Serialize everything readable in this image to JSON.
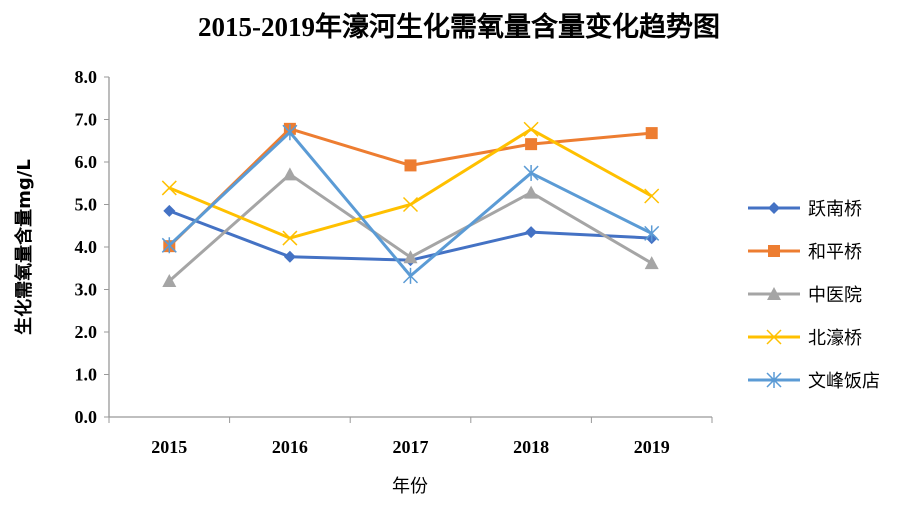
{
  "chart_data": {
    "type": "line",
    "title": "2015-2019年濠河生化需氧量含量变化趋势图",
    "xlabel": "年份",
    "ylabel": "生化需氧量含量mg/L",
    "categories": [
      "2015",
      "2016",
      "2017",
      "2018",
      "2019"
    ],
    "ylim": [
      0,
      8
    ],
    "yticks": [
      "0.0",
      "1.0",
      "2.0",
      "3.0",
      "4.0",
      "5.0",
      "6.0",
      "7.0",
      "8.0"
    ],
    "legend_position": "right",
    "grid": false,
    "series": [
      {
        "name": "跃南桥",
        "color": "#4472C4",
        "marker": "diamond",
        "values": [
          4.85,
          3.77,
          3.69,
          4.35,
          4.21
        ]
      },
      {
        "name": "和平桥",
        "color": "#ED7D31",
        "marker": "square",
        "values": [
          4.02,
          6.78,
          5.92,
          6.42,
          6.68
        ]
      },
      {
        "name": "中医院",
        "color": "#A5A5A5",
        "marker": "triangle",
        "values": [
          3.2,
          5.71,
          3.76,
          5.28,
          3.62
        ]
      },
      {
        "name": "北濠桥",
        "color": "#FFC000",
        "marker": "x",
        "values": [
          5.39,
          4.21,
          5.0,
          6.77,
          5.2
        ]
      },
      {
        "name": "文峰饭店",
        "color": "#5B9BD5",
        "marker": "star",
        "values": [
          4.04,
          6.7,
          3.32,
          5.74,
          4.32
        ]
      }
    ]
  }
}
